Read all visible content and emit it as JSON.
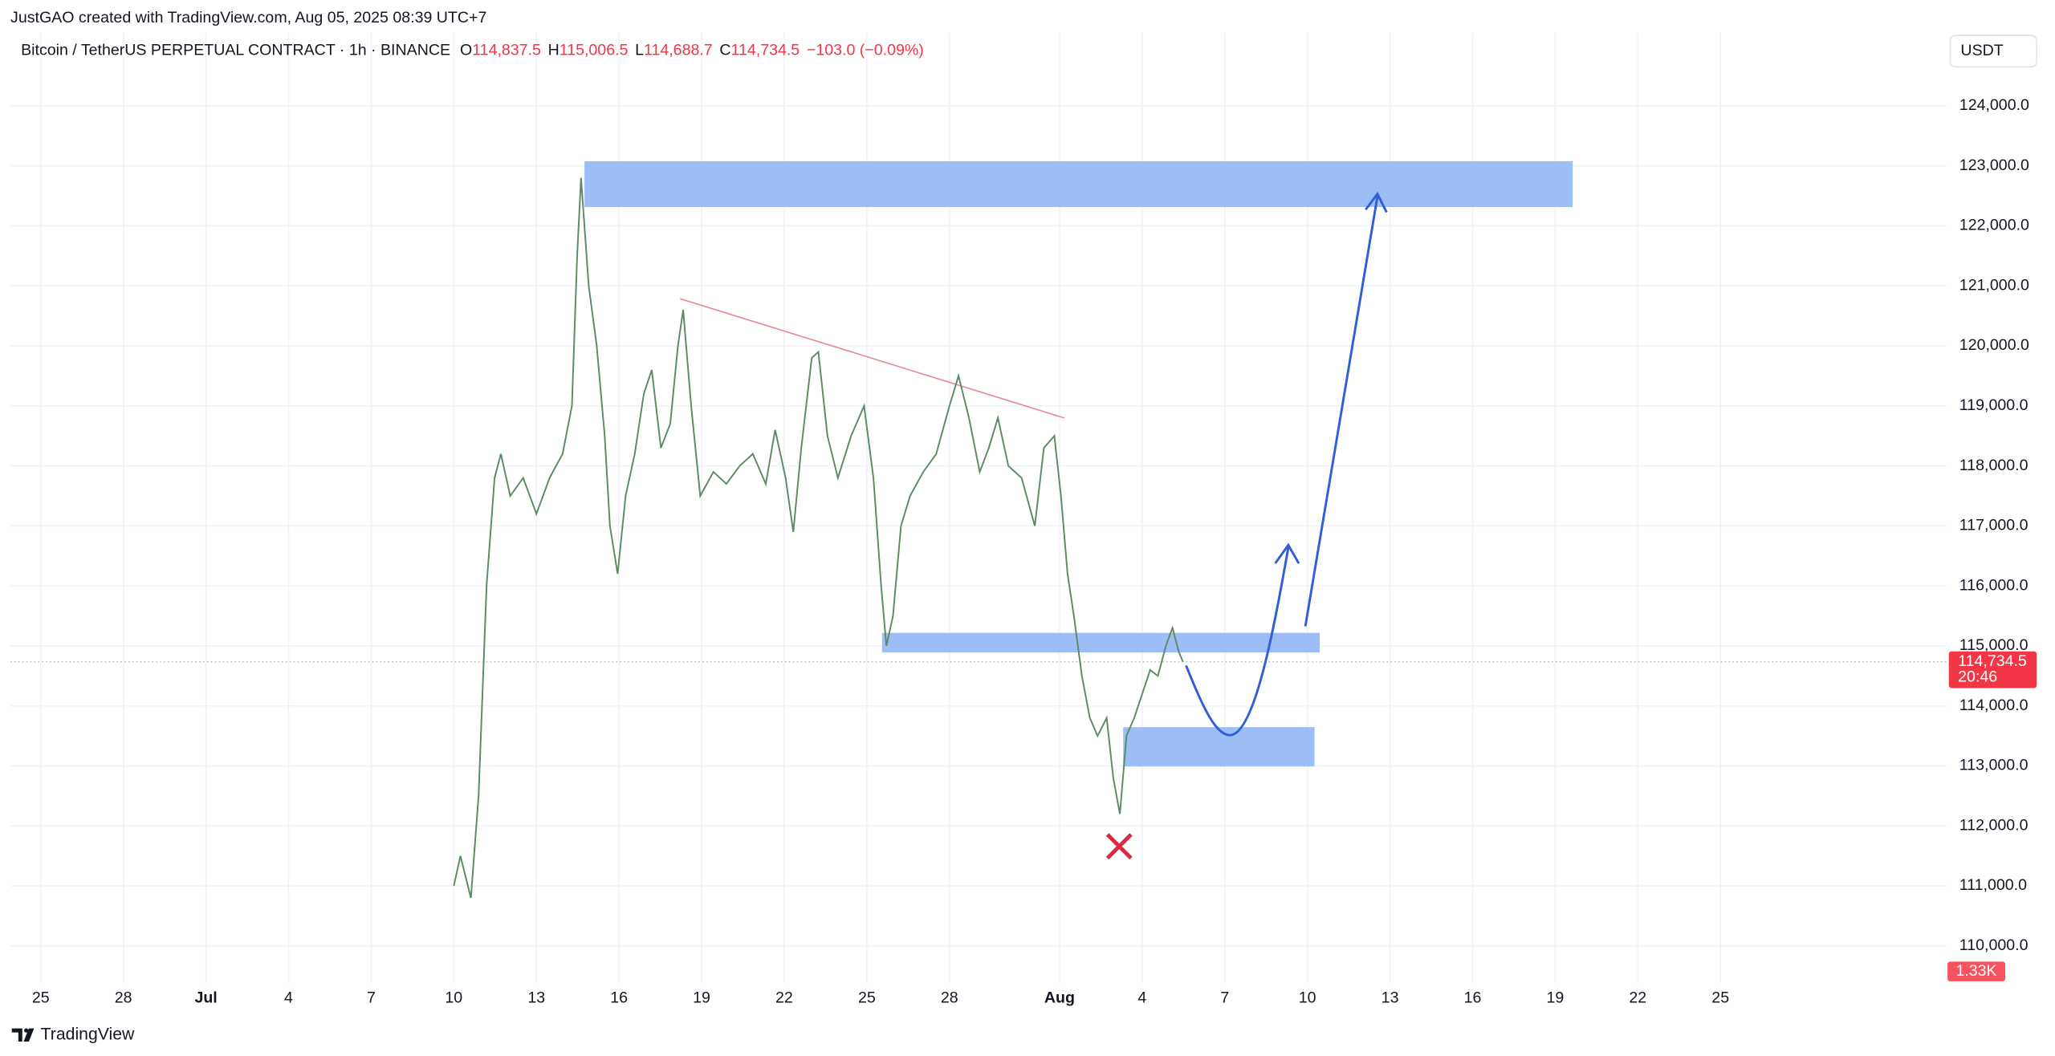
{
  "header": {
    "credit": "JustGAO created with TradingView.com, Aug 05, 2025 08:39 UTC+7"
  },
  "chart_data": {
    "type": "line",
    "symbol": "Bitcoin / TetherUS PERPETUAL CONTRACT · 1h · BINANCE",
    "ohlc": [
      {
        "label": "O",
        "value": "114,837.5"
      },
      {
        "label": "H",
        "value": "115,006.5"
      },
      {
        "label": "L",
        "value": "114,688.7"
      },
      {
        "label": "C",
        "value": "114,734.5"
      }
    ],
    "change": "−103.0 (−0.09%)",
    "currency": "USDT",
    "last_price_label": "114,734.5",
    "countdown": "20:46",
    "volume_label": "1.33K",
    "color": "#5e8a66",
    "x": [
      10,
      10.24,
      10.62,
      10.9,
      11.19,
      11.48,
      11.71,
      12.05,
      12.52,
      13,
      13.48,
      13.95,
      14.29,
      14.48,
      14.62,
      14.9,
      15.19,
      15.48,
      15.67,
      15.95,
      16.24,
      16.57,
      16.9,
      17.19,
      17.52,
      17.86,
      18.14,
      18.33,
      18.62,
      18.95,
      19.43,
      19.9,
      20.38,
      20.86,
      21.33,
      21.67,
      22.05,
      22.33,
      22.62,
      23,
      23.24,
      23.57,
      23.95,
      24.43,
      24.9,
      25.24,
      25.52,
      25.71,
      25.95,
      26.24,
      26.57,
      27.05,
      27.52,
      28,
      28.33,
      28.71,
      29.1,
      29.43,
      29.76,
      30.14,
      30.62,
      31.1,
      31.43,
      31.81,
      32.05,
      32.29,
      32.52,
      32.81,
      33.1,
      33.38,
      33.71,
      33.95,
      34.19,
      34.43,
      34.71,
      35,
      35.29,
      35.57,
      35.86,
      36.1,
      36.33,
      36.48
    ],
    "values": [
      111000,
      111500,
      110800,
      112500,
      116000,
      117800,
      118200,
      117500,
      117800,
      117200,
      117800,
      118200,
      119000,
      121500,
      122800,
      121000,
      120000,
      118500,
      117000,
      116200,
      117500,
      118200,
      119200,
      119600,
      118300,
      118700,
      120000,
      120600,
      119000,
      117500,
      117900,
      117700,
      118000,
      118200,
      117700,
      118600,
      117800,
      116900,
      118300,
      119800,
      119900,
      118500,
      117800,
      118500,
      119000,
      117800,
      116000,
      115000,
      115500,
      117000,
      117500,
      117900,
      118200,
      119000,
      119500,
      118800,
      117900,
      118300,
      118800,
      118000,
      117800,
      117000,
      118300,
      118500,
      117500,
      116200,
      115500,
      114500,
      113800,
      113500,
      113800,
      112800,
      112200,
      113500,
      113800,
      114200,
      114600,
      114500,
      115000,
      115300,
      114900,
      114734.5
    ],
    "xlim": [
      -6.1,
      64.2
    ],
    "xticks": [
      {
        "value": -5,
        "label": "25"
      },
      {
        "value": -2,
        "label": "28"
      },
      {
        "value": 1,
        "label": "Jul"
      },
      {
        "value": 4,
        "label": "4"
      },
      {
        "value": 7,
        "label": "7"
      },
      {
        "value": 10,
        "label": "10"
      },
      {
        "value": 13,
        "label": "13"
      },
      {
        "value": 16,
        "label": "16"
      },
      {
        "value": 19,
        "label": "19"
      },
      {
        "value": 22,
        "label": "22"
      },
      {
        "value": 25,
        "label": "25"
      },
      {
        "value": 28,
        "label": "28"
      },
      {
        "value": 32,
        "label": "Aug"
      },
      {
        "value": 35,
        "label": "4"
      },
      {
        "value": 38,
        "label": "7"
      },
      {
        "value": 41,
        "label": "10"
      },
      {
        "value": 44,
        "label": "13"
      },
      {
        "value": 47,
        "label": "16"
      },
      {
        "value": 50,
        "label": "19"
      },
      {
        "value": 53,
        "label": "22"
      },
      {
        "value": 56,
        "label": "25"
      }
    ],
    "ylim": [
      109389,
      125218
    ],
    "yticks": [
      {
        "value": 110000,
        "label": "110,000.0"
      },
      {
        "value": 111000,
        "label": "111,000.0"
      },
      {
        "value": 112000,
        "label": "112,000.0"
      },
      {
        "value": 113000,
        "label": "113,000.0"
      },
      {
        "value": 114000,
        "label": "114,000.0"
      },
      {
        "value": 115000,
        "label": "115,000.0"
      },
      {
        "value": 116000,
        "label": "116,000.0"
      },
      {
        "value": 117000,
        "label": "117,000.0"
      },
      {
        "value": 118000,
        "label": "118,000.0"
      },
      {
        "value": 119000,
        "label": "119,000.0"
      },
      {
        "value": 120000,
        "label": "120,000.0"
      },
      {
        "value": 121000,
        "label": "121,000.0"
      },
      {
        "value": 122000,
        "label": "122,000.0"
      },
      {
        "value": 123000,
        "label": "123,000.0"
      },
      {
        "value": 124000,
        "label": "124,000.0"
      }
    ],
    "grid": true
  },
  "footer": {
    "brand": "TradingView"
  }
}
